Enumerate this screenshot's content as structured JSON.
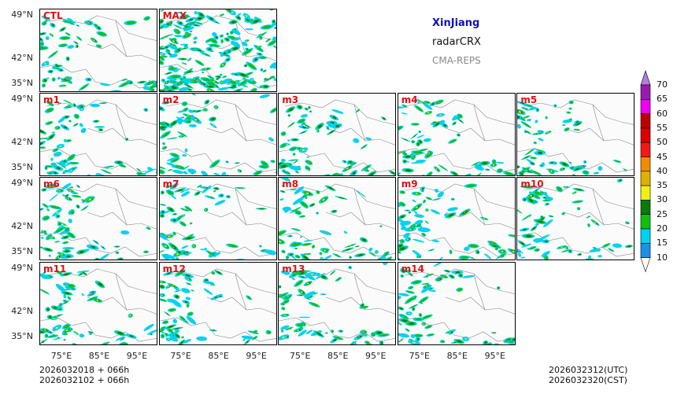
{
  "header": {
    "region": "XinJiang",
    "variable": "radarCRX",
    "system": "CMA-REPS"
  },
  "panels": [
    "CTL",
    "MAX",
    "m1",
    "m2",
    "m3",
    "m4",
    "m5",
    "m6",
    "m7",
    "m8",
    "m9",
    "m10",
    "m11",
    "m12",
    "m13",
    "m14"
  ],
  "axes": {
    "lat_labels": [
      "49°N",
      "42°N",
      "35°N"
    ],
    "lon_labels": [
      "75°E",
      "85°E",
      "95°E"
    ]
  },
  "footer": {
    "init_line1": "2026032018  +  066h",
    "init_line2": "2026032102  +  066h",
    "valid_utc": "2026032312(UTC)",
    "valid_cst": "2026032320(CST)"
  },
  "colorbar": {
    "levels": [
      "10",
      "15",
      "20",
      "25",
      "30",
      "35",
      "40",
      "45",
      "50",
      "55",
      "60",
      "65",
      "70"
    ],
    "colors": [
      "#1e90e8",
      "#00d2f0",
      "#10c010",
      "#0a7a0a",
      "#f0f018",
      "#e0b000",
      "#f08c00",
      "#f01818",
      "#d80000",
      "#c00000",
      "#f000f0",
      "#9a1ab0",
      "#b080e0"
    ]
  }
}
